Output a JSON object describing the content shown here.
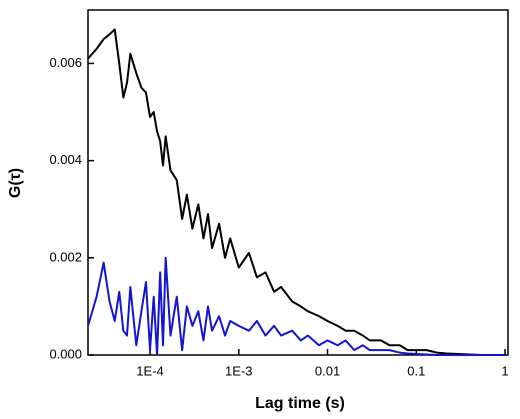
{
  "chart_data": {
    "type": "line",
    "xlabel": "Lag time (s)",
    "ylabel": "G(τ)",
    "xscale": "log",
    "x": [
      2e-05,
      2.5e-05,
      3e-05,
      3.5e-05,
      4e-05,
      4.5e-05,
      5e-05,
      5.5e-05,
      6e-05,
      7e-05,
      8e-05,
      9e-05,
      0.0001,
      0.00011,
      0.00012,
      0.00013,
      0.00014,
      0.00015,
      0.00017,
      0.0002,
      0.00023,
      0.00026,
      0.0003,
      0.00035,
      0.0004,
      0.00045,
      0.0005,
      0.0006,
      0.0007,
      0.0008,
      0.001,
      0.0013,
      0.0016,
      0.002,
      0.0025,
      0.003,
      0.004,
      0.005,
      0.006,
      0.008,
      0.01,
      0.013,
      0.016,
      0.02,
      0.025,
      0.03,
      0.04,
      0.05,
      0.065,
      0.08,
      0.1,
      0.13,
      0.17,
      0.22,
      0.3,
      0.4,
      0.55,
      0.7,
      1
    ],
    "series": [
      {
        "color": "#000000",
        "values": [
          0.0061,
          0.0063,
          0.0065,
          0.0066,
          0.0067,
          0.006,
          0.0053,
          0.0056,
          0.0062,
          0.0058,
          0.0055,
          0.0054,
          0.0049,
          0.005,
          0.0046,
          0.0044,
          0.0039,
          0.0045,
          0.0038,
          0.0036,
          0.0028,
          0.0033,
          0.0026,
          0.0031,
          0.0024,
          0.0029,
          0.0022,
          0.0027,
          0.002,
          0.0024,
          0.0018,
          0.0021,
          0.0016,
          0.0017,
          0.0013,
          0.0014,
          0.0011,
          0.001,
          0.0009,
          0.0008,
          0.0007,
          0.0006,
          0.0005,
          0.0005,
          0.0004,
          0.0003,
          0.0003,
          0.0002,
          0.0002,
          0.0001,
          0.0001,
          0.0001,
          5e-05,
          3e-05,
          2e-05,
          1e-05,
          0,
          0,
          0
        ]
      },
      {
        "color": "#1414d2",
        "values": [
          0.0006,
          0.0012,
          0.0019,
          0.0011,
          0.0007,
          0.0013,
          0.0005,
          0.0004,
          0.0014,
          0.0002,
          0.0009,
          0.0015,
          0.0001,
          0.0012,
          0,
          0.0017,
          0.0002,
          0.002,
          0.0004,
          0.0012,
          0.0001,
          0.001,
          0.0006,
          0.0009,
          0.0003,
          0.001,
          0.0005,
          0.0008,
          0.0004,
          0.0007,
          0.0006,
          0.0005,
          0.0007,
          0.0004,
          0.0006,
          0.0004,
          0.0005,
          0.0003,
          0.0004,
          0.0002,
          0.0003,
          0.0002,
          0.0003,
          0.0001,
          0.0002,
          0.0001,
          0.0001,
          0.0001,
          5e-05,
          3e-05,
          2e-05,
          1e-05,
          0,
          0,
          0,
          0,
          0,
          0,
          0
        ]
      }
    ],
    "xlim": [
      2e-05,
      1.08
    ],
    "ylim": [
      0,
      0.0071
    ],
    "xticks": [
      {
        "value": 0.0001,
        "label": "1E-4"
      },
      {
        "value": 0.001,
        "label": "1E-3"
      },
      0.01,
      0.1,
      1
    ],
    "yticks": [
      {
        "value": 0,
        "label": "0.000"
      },
      {
        "value": 0.002,
        "label": "0.002"
      },
      {
        "value": 0.004,
        "label": "0.004"
      },
      {
        "value": 0.006,
        "label": "0.006"
      }
    ]
  }
}
